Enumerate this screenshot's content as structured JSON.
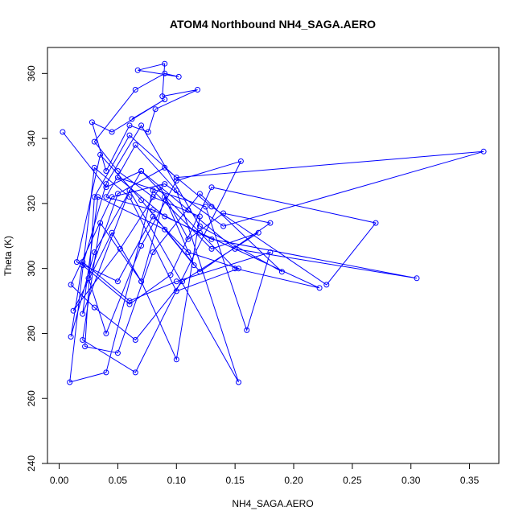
{
  "chart_data": {
    "type": "line",
    "title": "ATOM4 Northbound NH4_SAGA.AERO",
    "xlabel": "NH4_SAGA.AERO",
    "ylabel": "Theta (K)",
    "xlim": [
      -0.01,
      0.375
    ],
    "ylim": [
      240,
      368
    ],
    "xticks": [
      0.0,
      0.05,
      0.1,
      0.15,
      0.2,
      0.25,
      0.3,
      0.35
    ],
    "xtick_labels": [
      "0.00",
      "0.05",
      "0.10",
      "0.15",
      "0.20",
      "0.25",
      "0.30",
      "0.35"
    ],
    "yticks": [
      240,
      260,
      280,
      300,
      320,
      340,
      360
    ],
    "ytick_labels": [
      "240",
      "260",
      "280",
      "300",
      "320",
      "340",
      "360"
    ],
    "grid": false,
    "legend": "none",
    "color": "#0000ff",
    "series": [
      {
        "marker": "open-circle",
        "x": [
          0.003,
          0.04,
          0.07,
          0.12,
          0.15,
          0.222,
          0.09,
          0.05,
          0.125,
          0.16,
          0.18,
          0.1,
          0.06,
          0.02,
          0.01,
          0.03,
          0.07,
          0.11,
          0.15,
          0.305,
          0.13,
          0.08,
          0.04,
          0.065,
          0.1,
          0.153,
          0.06,
          0.02,
          0.033,
          0.09,
          0.115,
          0.09,
          0.07,
          0.045,
          0.012,
          0.052,
          0.086,
          0.11,
          0.14,
          0.18,
          0.12,
          0.07,
          0.035,
          0.015,
          0.05,
          0.08,
          0.11,
          0.153,
          0.1,
          0.06,
          0.03,
          0.009,
          0.04,
          0.08,
          0.13,
          0.17,
          0.105,
          0.065,
          0.03,
          0.01,
          0.045,
          0.09,
          0.14,
          0.362,
          0.1,
          0.06,
          0.03,
          0.022,
          0.05,
          0.08,
          0.12,
          0.19,
          0.12,
          0.07,
          0.04,
          0.02,
          0.06,
          0.095,
          0.13,
          0.27,
          0.228,
          0.13,
          0.09,
          0.05,
          0.025,
          0.04,
          0.07,
          0.1,
          0.155,
          0.065,
          0.02,
          0.035,
          0.07,
          0.1,
          0.12,
          0.08,
          0.05,
          0.03,
          0.065,
          0.09,
          0.102,
          0.067,
          0.09,
          0.088,
          0.118,
          0.082,
          0.076,
          0.06,
          0.04,
          0.028,
          0.045,
          0.09,
          0.062
        ],
        "y": [
          342,
          325,
          330,
          311,
          300,
          294,
          316,
          328,
          319,
          281,
          305,
          296,
          290,
          302,
          279,
          305,
          330,
          318,
          306,
          297,
          309,
          318,
          322,
          338,
          324,
          265,
          324,
          286,
          322,
          312,
          301,
          322,
          296,
          311,
          287,
          306,
          325,
          309,
          317,
          314,
          299,
          321,
          335,
          302,
          296,
          316,
          305,
          300,
          293,
          322,
          331,
          265,
          268,
          324,
          306,
          311,
          296,
          278,
          288,
          295,
          322,
          326,
          313,
          336,
          328,
          341,
          322,
          276,
          274,
          305,
          323,
          299,
          313,
          344,
          326,
          301,
          289,
          298,
          325,
          314,
          295,
          319,
          331,
          323,
          297,
          280,
          307,
          327,
          333,
          268,
          278,
          314,
          296,
          272,
          316,
          322,
          330,
          339,
          355,
          360,
          359,
          361,
          363,
          353,
          355,
          349,
          342,
          344,
          330,
          345,
          342,
          352,
          346
        ]
      }
    ]
  }
}
